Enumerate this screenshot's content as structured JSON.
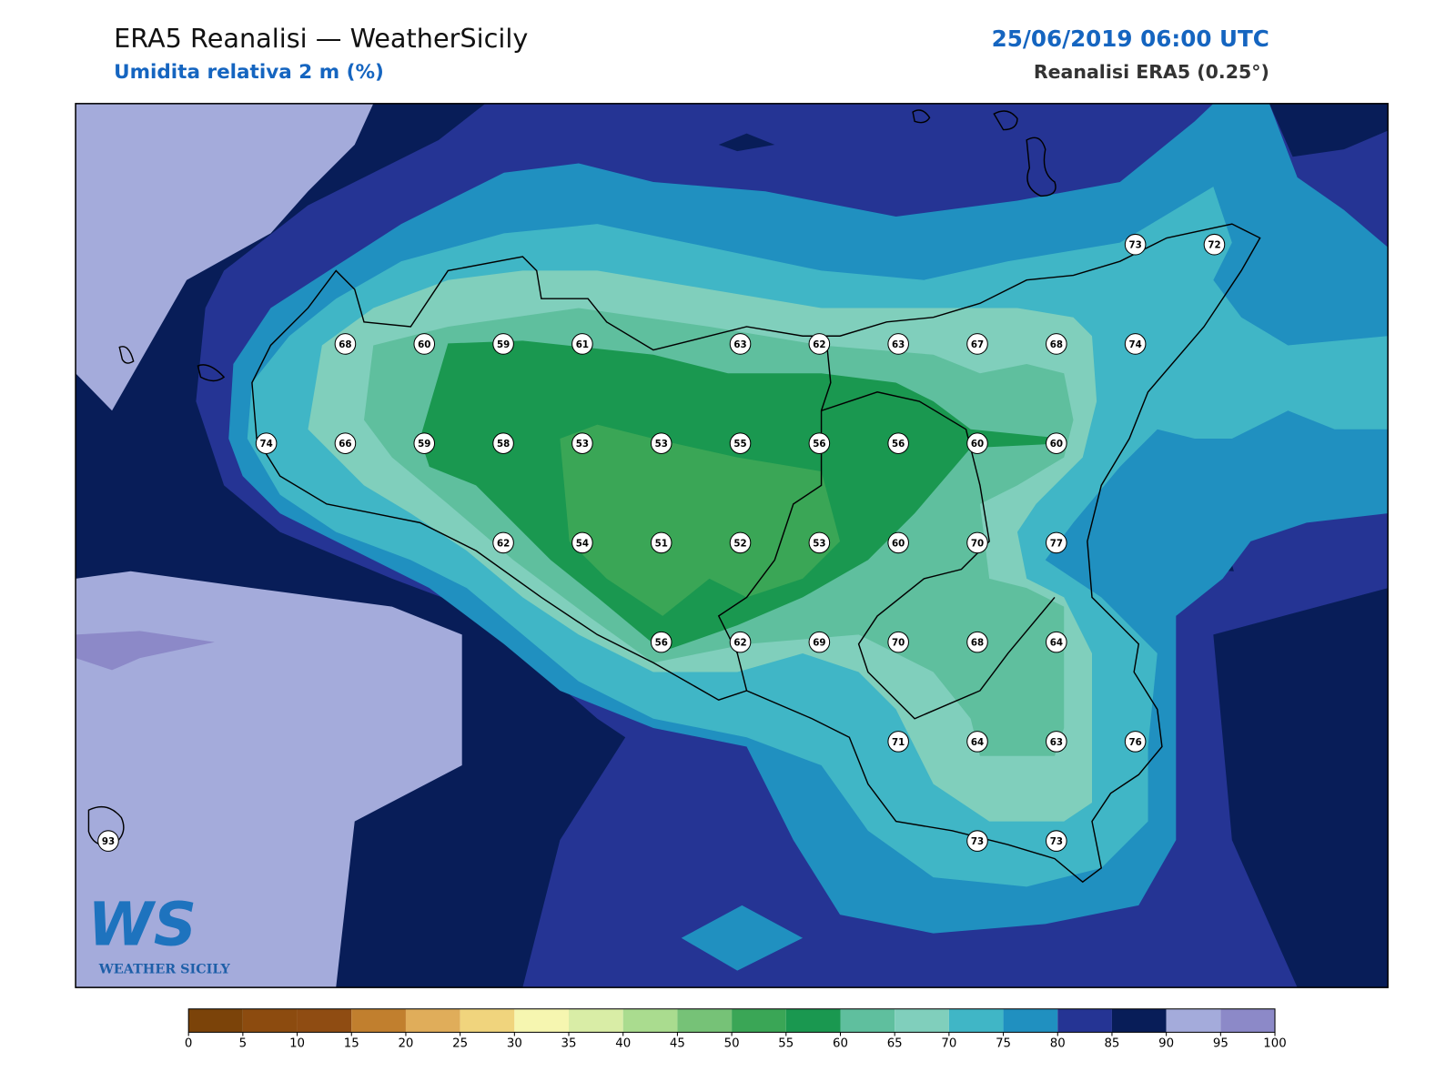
{
  "header": {
    "title": "ERA5 Reanalisi — WeatherSicily",
    "subtitle": "Umidita relativa 2 m (%)",
    "timestamp": "25/06/2019 06:00 UTC",
    "source": "Reanalisi ERA5 (0.25°)"
  },
  "stations": {
    "values": [
      73,
      72,
      68,
      60,
      59,
      61,
      63,
      62,
      63,
      67,
      68,
      74,
      74,
      66,
      59,
      58,
      53,
      53,
      55,
      56,
      56,
      60,
      60,
      62,
      54,
      51,
      52,
      53,
      60,
      70,
      77,
      56,
      62,
      69,
      70,
      68,
      64,
      71,
      64,
      63,
      76,
      93,
      73,
      73
    ]
  },
  "colorbar": {
    "levels": [
      0,
      5,
      10,
      15,
      20,
      25,
      30,
      35,
      40,
      45,
      50,
      55,
      60,
      65,
      70,
      75,
      80,
      85,
      90,
      95,
      100
    ],
    "colors": [
      "#7b4309",
      "#8c4b0f",
      "#8f4c12",
      "#c17f2e",
      "#e0ad5a",
      "#f0d47d",
      "#f6f6b0",
      "#d9eda6",
      "#aadc8f",
      "#76c277",
      "#3aa656",
      "#1a9850",
      "#5fbf9e",
      "#80cfbc",
      "#40b6c6",
      "#2090c0",
      "#253494",
      "#081d58",
      "#a4abdb",
      "#8c89c8"
    ]
  },
  "logo": {
    "mark": "WS",
    "text": "WEATHER SICILY"
  }
}
